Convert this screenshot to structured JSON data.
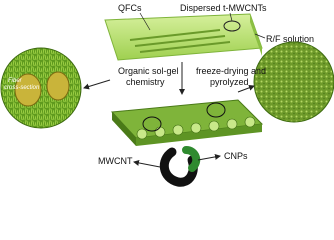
{
  "labels": {
    "qfcs": "QFCs",
    "dispersed": "Dispersed t-MWCNTs",
    "solution": "R/F solution",
    "fiber": [
      "Fiber",
      "cross-section"
    ],
    "sol_gel": [
      "Organic sol-gel",
      "chemistry"
    ],
    "freeze": [
      "freeze-drying and",
      "pyrolyzed"
    ],
    "mwcnt": "MWCNT",
    "cnps": "CNPs"
  }
}
